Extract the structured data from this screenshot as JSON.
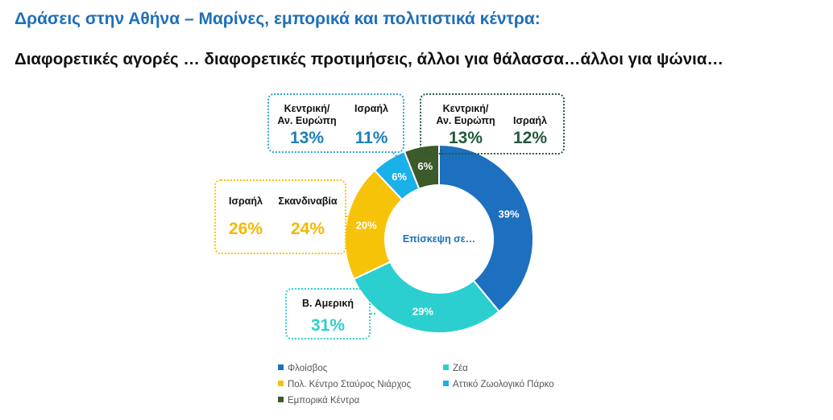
{
  "header": {
    "title": "Δράσεις στην Αθήνα – Μαρίνες, εμπορικά και πολιτιστικά κέντρα:",
    "subtitle": "Διαφορετικές αγορές … διαφορετικές προτιμήσεις, άλλοι για θάλασσα…άλλοι για ψώνια…"
  },
  "chart_data": {
    "type": "pie",
    "variant": "donut",
    "center_label": "Επίσκεψη σε…",
    "categories": [
      "Φλοίσβος",
      "Ζέα",
      "Πολ. Κέντρο Σταύρος Νιάρχος",
      "Αττικό Ζωολογικό Πάρκο",
      "Εμπορικά Κέντρα"
    ],
    "values": [
      39,
      29,
      20,
      6,
      6
    ],
    "value_labels": [
      "39%",
      "29%",
      "20%",
      "6%",
      "6%"
    ],
    "colors": [
      "#1d6fbf",
      "#2ccfcf",
      "#f7c308",
      "#1ab0e8",
      "#3c5a2a"
    ],
    "legend_position": "bottom"
  },
  "callouts": [
    {
      "segment": "Φλοίσβος",
      "color": "#2fa4d6",
      "text_color": "#1e7fb8",
      "items": [
        {
          "label": "Κεντρική/\nΑν. Ευρώπη",
          "value": "13%"
        },
        {
          "label": "Ισραήλ",
          "value": "11%"
        }
      ]
    },
    {
      "segment": "Εμπορικά Κέντρα",
      "color": "#2a5a3a",
      "text_color": "#1e5a3a",
      "items": [
        {
          "label": "Κεντρική/\nΑν. Ευρώπη",
          "value": "13%"
        },
        {
          "label": "Ισραήλ",
          "value": "12%"
        }
      ]
    },
    {
      "segment": "Πολ. Κέντρο Σταύρος Νιάρχος",
      "color": "#f7c308",
      "text_color": "#f5b800",
      "items": [
        {
          "label": "Ισραήλ",
          "value": "26%"
        },
        {
          "label": "Σκανδιναβία",
          "value": "24%"
        }
      ]
    },
    {
      "segment": "Ζέα",
      "color": "#2ccfcf",
      "text_color": "#2ccfcf",
      "items": [
        {
          "label": "Β. Αμερική",
          "value": "31%"
        }
      ]
    }
  ]
}
